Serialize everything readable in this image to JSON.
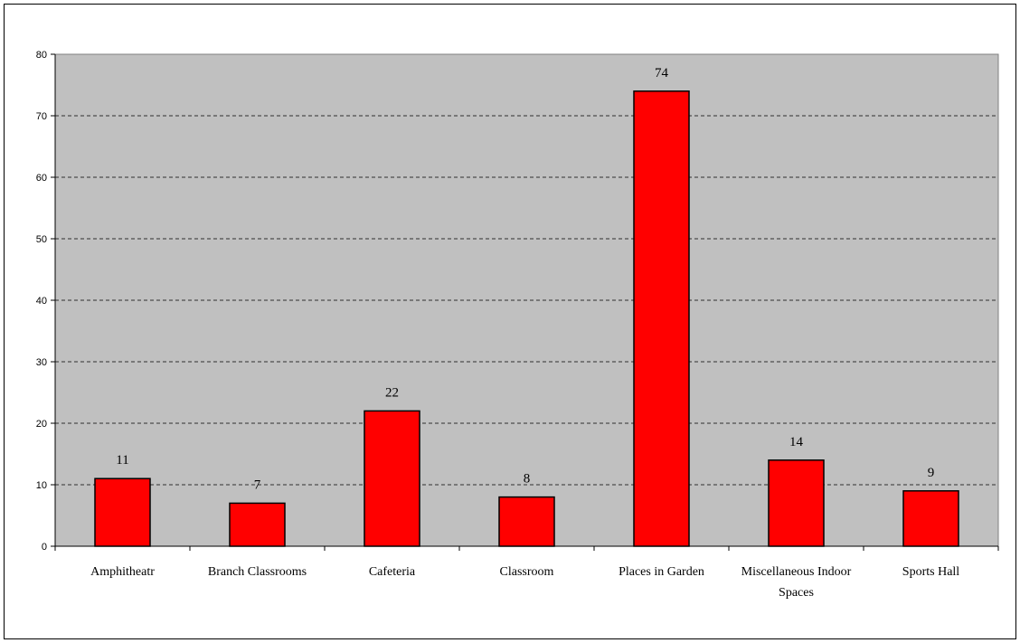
{
  "chart_data": {
    "type": "bar",
    "title": "",
    "xlabel": "",
    "ylabel": "",
    "categories": [
      [
        "Amphitheatr"
      ],
      [
        "Branch Classrooms"
      ],
      [
        "Cafeteria"
      ],
      [
        "Classroom"
      ],
      [
        "Places in Garden"
      ],
      [
        "Miscellaneous Indoor",
        "Spaces"
      ],
      [
        "Sports Hall"
      ]
    ],
    "values": [
      11,
      7,
      22,
      8,
      74,
      14,
      9
    ],
    "ylim": [
      0,
      80
    ],
    "yticks": [
      0,
      10,
      20,
      30,
      40,
      50,
      60,
      70,
      80
    ],
    "grid": true,
    "colors": {
      "bar": "#ff0000",
      "bar_outline": "#000000",
      "plot_background": "#c0c0c0",
      "grid": "#000000"
    }
  }
}
